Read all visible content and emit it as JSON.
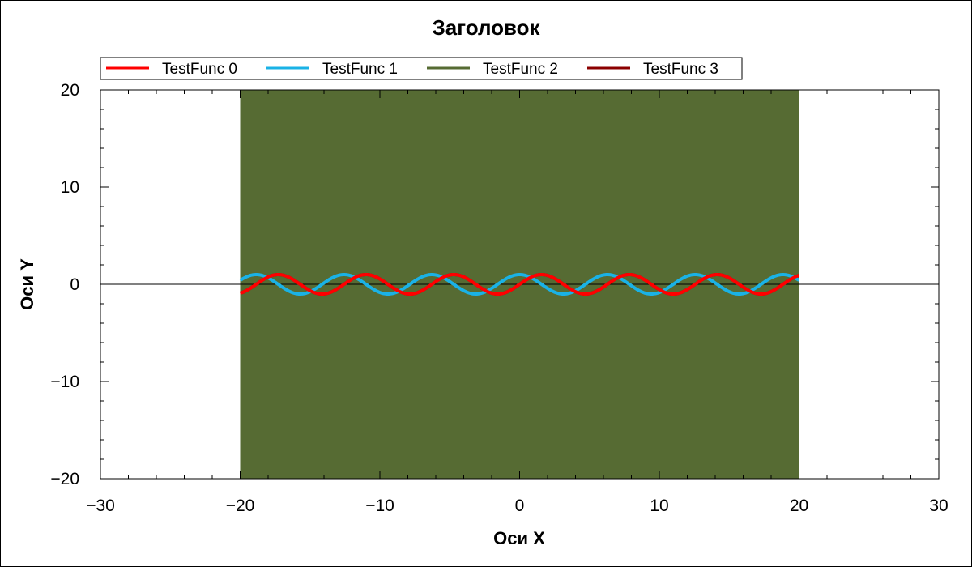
{
  "chart_data": {
    "type": "line",
    "title": "Заголовок",
    "xlabel": "Оси X",
    "ylabel": "Оси Y",
    "xlim": [
      -30,
      30
    ],
    "ylim": [
      -20,
      20
    ],
    "xticks": [
      -30,
      -20,
      -10,
      0,
      10,
      20,
      30
    ],
    "yticks": [
      -20,
      -10,
      0,
      10,
      20
    ],
    "grid": false,
    "legend_position": "top",
    "series": [
      {
        "name": "TestFunc 0",
        "color": "#ff0000",
        "function": "sin(x)",
        "x_range": [
          -20,
          20
        ]
      },
      {
        "name": "TestFunc 1",
        "color": "#1ab2e6",
        "function": "cos(x)",
        "x_range": [
          -20,
          20
        ]
      },
      {
        "name": "TestFunc 2",
        "color": "#566b33",
        "function": "dense oscillation filling y range -20 to 20",
        "x_range": [
          -20,
          20
        ],
        "y_range": [
          -20,
          20
        ]
      },
      {
        "name": "TestFunc 3",
        "color": "#8b0000",
        "function": "sin(x)",
        "x_range": [
          -20,
          20
        ]
      }
    ]
  }
}
